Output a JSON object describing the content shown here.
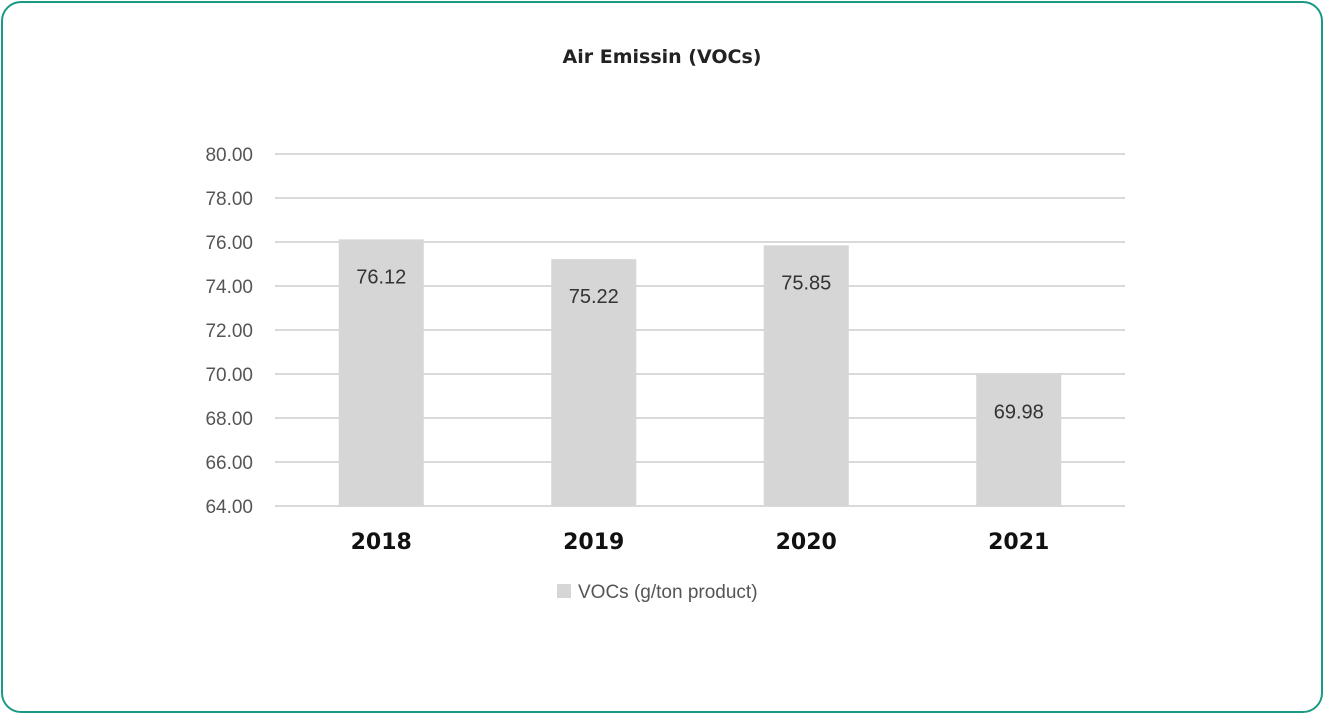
{
  "chart_data": {
    "type": "bar",
    "title": "Air Emissin (VOCs)",
    "xlabel": "",
    "ylabel": "",
    "categories": [
      "2018",
      "2019",
      "2020",
      "2021"
    ],
    "series": [
      {
        "name": "VOCs (g/ton product)",
        "values": [
          76.12,
          75.22,
          75.85,
          69.98
        ]
      }
    ],
    "data_labels": [
      "76.12",
      "75.22",
      "75.85",
      "69.98"
    ],
    "yticks": [
      "64.00",
      "66.00",
      "68.00",
      "70.00",
      "72.00",
      "74.00",
      "76.00",
      "78.00",
      "80.00"
    ],
    "ylim": [
      64,
      80
    ],
    "grid": true,
    "legend_position": "bottom",
    "colors": {
      "bar": "#d6d6d6",
      "grid": "#d9d9d9",
      "border": "#1a9a85"
    }
  }
}
